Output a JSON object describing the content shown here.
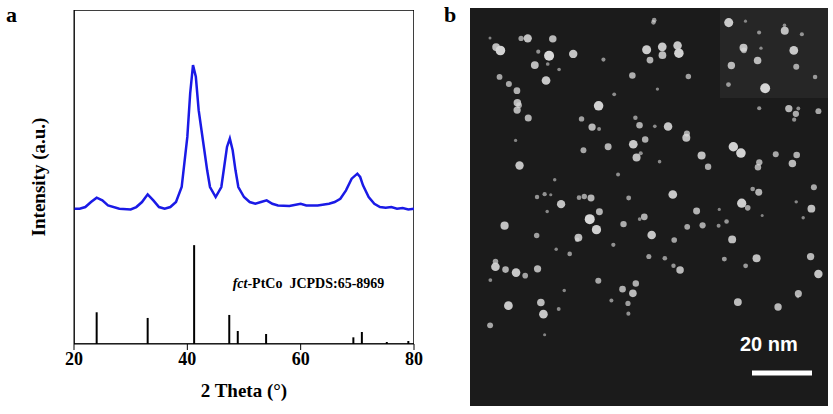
{
  "chart_data": {
    "type": "line",
    "panel": "a",
    "x_label": "2 Theta (°)",
    "y_label": "Intensity (a.u.)",
    "xlim": [
      20,
      80
    ],
    "xticks": [
      20,
      40,
      60,
      80
    ],
    "ylim": [
      0,
      100
    ],
    "yticks": [],
    "tick_labels": "x",
    "series": [
      {
        "type": "line",
        "color": "#1a1ae6",
        "x": [
          20,
          21,
          22,
          23,
          24,
          25,
          26,
          28,
          30,
          31,
          32,
          33,
          34,
          35,
          36,
          37,
          38,
          39,
          40,
          40.5,
          41,
          41.5,
          42,
          42.5,
          43,
          43.5,
          44,
          45,
          46,
          46.5,
          47,
          47.5,
          48,
          48.5,
          49,
          50,
          51,
          52,
          53,
          54,
          55,
          56,
          58,
          60,
          61,
          63,
          65,
          66,
          67,
          68,
          69,
          70,
          70.5,
          71,
          72,
          73,
          74,
          75,
          76,
          77,
          78,
          79,
          80
        ],
        "values": [
          40.5,
          40.5,
          41,
          42.5,
          43.8,
          43,
          41.5,
          40.5,
          40.3,
          41,
          42.5,
          44.8,
          43,
          41,
          40.5,
          41,
          42.5,
          47,
          62,
          75,
          83.5,
          80,
          70,
          64,
          58,
          52,
          47,
          44,
          47,
          53,
          59,
          61.5,
          58,
          52,
          47,
          44,
          42.5,
          42,
          42.5,
          43,
          42,
          41.5,
          41.3,
          42,
          41.5,
          41.5,
          42,
          42.5,
          43.5,
          46,
          49.5,
          51,
          50,
          47.5,
          44,
          42,
          41,
          40.8,
          41,
          40.5,
          40.7,
          40.3,
          40.5
        ]
      },
      {
        "type": "bar",
        "color": "#000000",
        "label": "fct-PtCo  JCPDS:65-8969",
        "x": [
          24,
          33,
          41.2,
          47.4,
          48.9,
          53.9,
          69.3,
          70.8,
          75.2,
          79
        ],
        "values": [
          9.5,
          7.8,
          29.6,
          8.7,
          3.9,
          3,
          2,
          3.6,
          0.6,
          0.9
        ]
      }
    ]
  },
  "image": {
    "panel": "b",
    "scale_bar_label": "20 nm"
  }
}
